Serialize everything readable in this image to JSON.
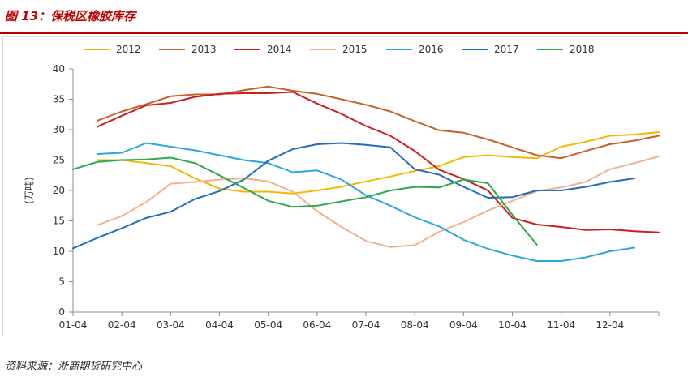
{
  "header": {
    "title": "图 13：保税区橡胶库存"
  },
  "footer": {
    "source": "资料来源：浙商期货研究中心"
  },
  "chart_data": {
    "type": "line",
    "ylabel": "(万吨)",
    "ylim": [
      0,
      40
    ],
    "yticks": [
      0,
      5,
      10,
      15,
      20,
      25,
      30,
      35,
      40
    ],
    "categories": [
      "01-04",
      "02-04",
      "03-04",
      "04-04",
      "05-04",
      "06-04",
      "07-04",
      "08-04",
      "09-04",
      "10-04",
      "11-04",
      "12-04"
    ],
    "grid": false,
    "legend_position": "top",
    "series": [
      {
        "name": "2012",
        "color": "#f5b800",
        "x": [
          0.5,
          1,
          1.5,
          2,
          2.5,
          3,
          3.5,
          4,
          4.5,
          5,
          5.5,
          6,
          6.5,
          7,
          7.5,
          8,
          8.5,
          9,
          9.5,
          10,
          10.5,
          11,
          11.5,
          12,
          12.5
        ],
        "values": [
          25,
          25,
          24.5,
          24,
          22,
          20.3,
          19.8,
          19.8,
          19.5,
          20,
          20.6,
          21.5,
          22.3,
          23.2,
          24,
          25.5,
          25.8,
          25.5,
          25.3,
          27.2,
          28,
          29,
          29.2,
          29.6,
          null
        ]
      },
      {
        "name": "2013",
        "color": "#c5622a",
        "x": [
          0.5,
          1,
          1.5,
          2,
          2.5,
          3,
          3.5,
          4,
          4.5,
          5,
          5.5,
          6,
          6.5,
          7,
          7.5,
          8,
          8.5,
          9,
          9.5,
          10,
          10.5,
          11,
          11.5,
          12,
          12.5
        ],
        "values": [
          31.5,
          33,
          34.2,
          35.5,
          35.8,
          35.8,
          36.5,
          37.1,
          36.4,
          35.9,
          35,
          34.1,
          33,
          31.4,
          29.9,
          29.5,
          28.4,
          27.1,
          25.8,
          25.3,
          26.5,
          27.6,
          28.2,
          29,
          null
        ]
      },
      {
        "name": "2014",
        "color": "#c8201e",
        "x": [
          0.5,
          1,
          1.5,
          2,
          2.5,
          3,
          3.5,
          4,
          4.5,
          5,
          5.5,
          6,
          6.5,
          7,
          7.5,
          8,
          8.5,
          9,
          9.5,
          10,
          10.5,
          11,
          11.5,
          12,
          12.5
        ],
        "values": [
          30.5,
          32.3,
          34,
          34.4,
          35.4,
          35.9,
          36,
          36,
          36.2,
          34.3,
          32.6,
          30.6,
          29,
          26.5,
          23.4,
          21.9,
          20,
          15.5,
          14.4,
          14,
          13.5,
          13.6,
          13.3,
          13.1,
          null
        ]
      },
      {
        "name": "2015",
        "color": "#f2b08b",
        "x": [
          0.5,
          1,
          1.5,
          2,
          2.5,
          3,
          3.5,
          4,
          4.5,
          5,
          5.5,
          6,
          6.5,
          7,
          7.5,
          8,
          8.5,
          9,
          9.5,
          10,
          10.5,
          11,
          11.5,
          12,
          12.5
        ],
        "values": [
          14.3,
          15.8,
          18.1,
          21.1,
          21.4,
          21.8,
          22,
          21.5,
          19.8,
          16.6,
          14,
          11.7,
          10.7,
          11,
          13.2,
          14.8,
          16.7,
          18.3,
          19.9,
          20.5,
          21.4,
          23.5,
          24.5,
          25.6,
          null
        ]
      },
      {
        "name": "2016",
        "color": "#29a8e0",
        "x": [
          0.5,
          1,
          1.5,
          2,
          2.5,
          3,
          3.5,
          4,
          4.5,
          5,
          5.5,
          6,
          6.5,
          7,
          7.5,
          8,
          8.5,
          9,
          9.5,
          10,
          10.5,
          11,
          11.5,
          12,
          12.5
        ],
        "values": [
          26,
          26.2,
          27.8,
          27.2,
          26.6,
          25.8,
          25,
          24.5,
          23,
          23.3,
          21.8,
          19.2,
          17.5,
          15.6,
          14.1,
          11.9,
          10.4,
          9.3,
          8.4,
          8.4,
          9,
          10,
          10.6,
          null,
          null
        ]
      },
      {
        "name": "2017",
        "color": "#1f6fb8",
        "x": [
          0,
          0.5,
          1,
          1.5,
          2,
          2.5,
          3,
          3.5,
          4,
          4.5,
          5,
          5.5,
          6,
          6.5,
          7,
          7.5,
          8,
          8.5,
          9,
          9.5,
          10,
          10.5,
          11,
          11.5
        ],
        "values": [
          10.5,
          12.2,
          13.8,
          15.5,
          16.5,
          18.6,
          19.9,
          21.8,
          24.9,
          26.8,
          27.6,
          27.8,
          27.5,
          27.1,
          23.5,
          22.6,
          20.6,
          18.8,
          18.9,
          20,
          20,
          20.6,
          21.4,
          22
        ]
      },
      {
        "name": "2018",
        "color": "#2ea84a",
        "x": [
          0,
          0.5,
          1,
          1.5,
          2,
          2.5,
          3,
          3.5,
          4,
          4.5,
          5,
          5.5,
          6,
          6.5,
          7,
          7.5,
          8,
          8.5,
          9,
          9.5
        ],
        "values": [
          23.5,
          24.7,
          25,
          25.1,
          25.4,
          24.5,
          22.5,
          20.4,
          18.3,
          17.3,
          17.5,
          18.2,
          18.9,
          20,
          20.6,
          20.5,
          21.8,
          21.2,
          16,
          11.1
        ]
      }
    ]
  }
}
